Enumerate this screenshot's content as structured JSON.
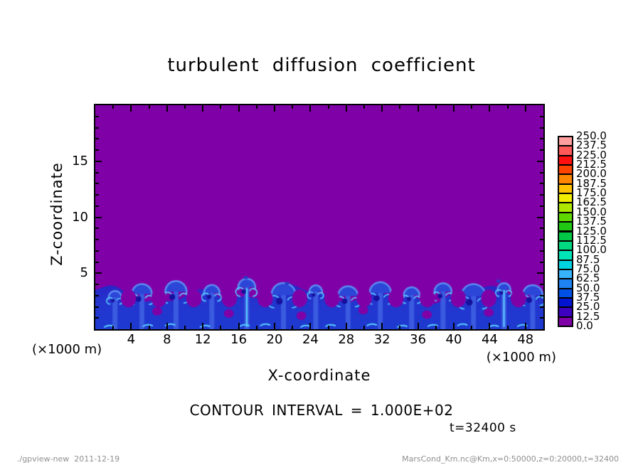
{
  "title": "turbulent diffusion coefficient",
  "axes": {
    "x_label": "X-coordinate",
    "z_label": "Z-coordinate",
    "x_units": "(×1000 m)",
    "z_units": "(×1000 m)"
  },
  "annotations": {
    "contour_interval": "CONTOUR INTERVAL = 1.000E+02",
    "time": "t=32400 s"
  },
  "footer": {
    "left": "./gpview-new  2011-12-19",
    "right": "MarsCond_Km.nc@Km,x=0:50000,z=0:20000,t=32400"
  },
  "chart_data": {
    "type": "heatmap",
    "title": "turbulent diffusion coefficient",
    "xlabel": "X-coordinate",
    "ylabel": "Z-coordinate",
    "xlim": [
      0,
      50
    ],
    "ylim": [
      0,
      20
    ],
    "axis_units_scale": "(×1000 m)",
    "x_ticks_major": [
      4,
      8,
      12,
      16,
      20,
      24,
      28,
      32,
      36,
      40,
      44,
      48
    ],
    "x_tick_minor_step": 2,
    "z_ticks_major": [
      5,
      10,
      15
    ],
    "z_tick_minor_step": 1,
    "grid": false,
    "contour_interval": "1.000E+02",
    "time_seconds": 32400,
    "colorbar": {
      "position": "right",
      "labels_top_to_bottom": [
        "250.0",
        "237.5",
        "225.0",
        "212.5",
        "200.0",
        "187.5",
        "175.0",
        "162.5",
        "150.0",
        "137.5",
        "125.0",
        "112.5",
        "100.0",
        "87.5",
        "75.0",
        "62.5",
        "50.0",
        "37.5",
        "25.0",
        "12.5",
        "0.0"
      ],
      "box_colors_top_to_bottom": [
        "#ff9e9e",
        "#ff5a5a",
        "#ff1010",
        "#ff4300",
        "#ff8700",
        "#ffc300",
        "#f2ee00",
        "#aee800",
        "#5ed800",
        "#20c814",
        "#00c846",
        "#00d980",
        "#00e4b8",
        "#00d2e0",
        "#38b4ff",
        "#1e82f0",
        "#0050e6",
        "#0014d2",
        "#3c00be",
        "#8000a8"
      ]
    },
    "field": {
      "description": "uniform minimum band 0.0-12.5 (purple) everywhere above z≈3.5; turbulent convective boundary layer of blue eddies (values ≈12.5-87.5) below z≈3.5",
      "background_color": "#8000a8",
      "layer_top_z": 3.1,
      "layer_colors": {
        "base": "#2336cf",
        "deep": "#1c2cc4",
        "mid": "#2c46d8",
        "rim": "#5b8cf0",
        "bright": "#59ccff",
        "dark_core": "#16109e"
      },
      "plumes": [
        {
          "x": 2.2,
          "h": 3.1
        },
        {
          "x": 5.2,
          "h": 3.4
        },
        {
          "x": 9.0,
          "h": 3.6
        },
        {
          "x": 13.0,
          "h": 3.5
        },
        {
          "x": 16.9,
          "h": 4.0
        },
        {
          "x": 21.0,
          "h": 3.3
        },
        {
          "x": 24.6,
          "h": 3.6
        },
        {
          "x": 28.2,
          "h": 3.2
        },
        {
          "x": 31.8,
          "h": 3.5
        },
        {
          "x": 35.3,
          "h": 3.3
        },
        {
          "x": 38.8,
          "h": 3.6
        },
        {
          "x": 42.2,
          "h": 3.2
        },
        {
          "x": 45.6,
          "h": 3.8
        },
        {
          "x": 48.8,
          "h": 3.3
        }
      ],
      "purple_holes": [
        [
          6.9,
          1.6
        ],
        [
          14.9,
          1.4
        ],
        [
          23.0,
          1.2
        ],
        [
          29.9,
          1.7
        ],
        [
          37.0,
          1.3
        ],
        [
          43.9,
          1.5
        ]
      ],
      "bottom_streaks_x": [
        1.5,
        5.8,
        8.3,
        12.2,
        16.6,
        18.9,
        23.4,
        26.2,
        30.8,
        34.2,
        37.6,
        40.9,
        44.4,
        47.6
      ],
      "specks_above_layer": [
        {
          "x": 16.8,
          "z": 4.6
        },
        {
          "x": 21.4,
          "z": 4.1
        },
        {
          "x": 45.0,
          "z": 4.3
        }
      ]
    }
  }
}
